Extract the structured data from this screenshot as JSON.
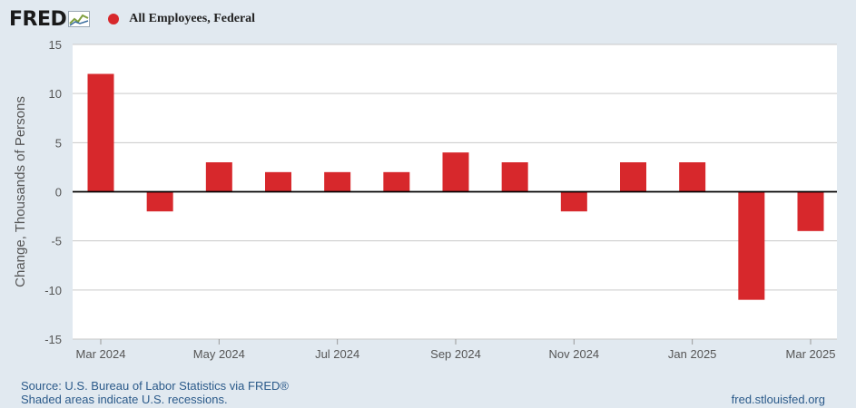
{
  "header": {
    "logo_text": "FRED",
    "logo_icon": "fred-chart-icon",
    "legend_label": "All Employees, Federal"
  },
  "colors": {
    "bar": "#d7282c",
    "background": "#e1e9f0",
    "plot_background": "#ffffff",
    "grid": "#c9c9c9",
    "axis_text": "#555555"
  },
  "chart_data": {
    "type": "bar",
    "categories": [
      "Mar 2024",
      "Apr 2024",
      "May 2024",
      "Jun 2024",
      "Jul 2024",
      "Aug 2024",
      "Sep 2024",
      "Oct 2024",
      "Nov 2024",
      "Dec 2024",
      "Jan 2025",
      "Feb 2025",
      "Mar 2025"
    ],
    "series": [
      {
        "name": "All Employees, Federal",
        "values": [
          12,
          -2,
          3,
          2,
          2,
          2,
          4,
          3,
          -2,
          3,
          3,
          -11,
          -4
        ]
      }
    ],
    "xtick_labels": [
      "Mar 2024",
      "",
      "May 2024",
      "",
      "Jul 2024",
      "",
      "Sep 2024",
      "",
      "Nov 2024",
      "",
      "Jan 2025",
      "",
      "Mar 2025"
    ],
    "ylabel": "Change, Thousands of Persons",
    "ylim": [
      -15,
      15
    ],
    "yticks": [
      -15,
      -10,
      -5,
      0,
      5,
      10,
      15
    ],
    "ytick_labels": [
      "-15",
      "-10",
      "-5",
      "0",
      "5",
      "10",
      "15"
    ],
    "grid": true,
    "legend": "top-left"
  },
  "footer": {
    "source": "Source: U.S. Bureau of Labor Statistics via FRED®",
    "note": "Shaded areas indicate U.S. recessions.",
    "url": "fred.stlouisfed.org"
  }
}
